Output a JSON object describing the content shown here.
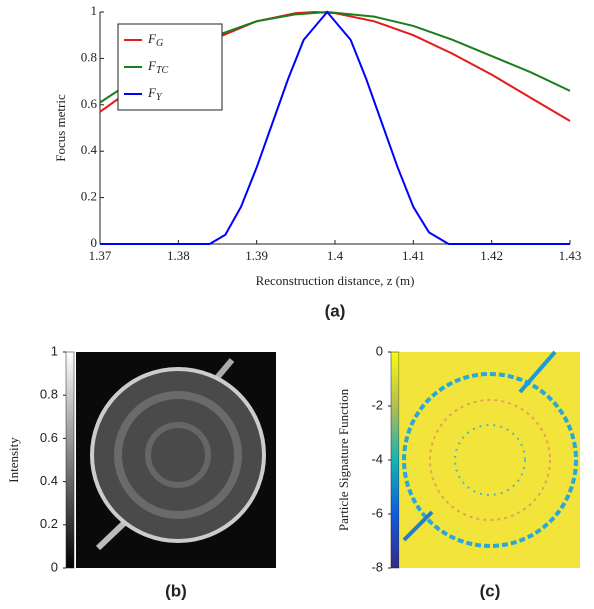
{
  "chart_data": [
    {
      "type": "line",
      "xlabel": "Reconstruction distance, z (m)",
      "ylabel": "Focus metric",
      "caption": "(a)",
      "xlim": [
        1.37,
        1.43
      ],
      "xticks": [
        1.37,
        1.38,
        1.39,
        1.4,
        1.41,
        1.42,
        1.43
      ],
      "ylim": [
        0,
        1
      ],
      "yticks": [
        0,
        0.2,
        0.4,
        0.6,
        0.8,
        1
      ],
      "grid": false,
      "legend": "upper left",
      "series": [
        {
          "name": "F_G",
          "color": "#e41a1c",
          "x": [
            1.37,
            1.375,
            1.38,
            1.385,
            1.39,
            1.395,
            1.3975,
            1.4,
            1.405,
            1.41,
            1.415,
            1.42,
            1.425,
            1.43
          ],
          "values": [
            0.57,
            0.69,
            0.8,
            0.89,
            0.96,
            0.995,
            1,
            0.995,
            0.96,
            0.9,
            0.82,
            0.73,
            0.63,
            0.53
          ]
        },
        {
          "name": "F_TC",
          "color": "#1a7f1a",
          "x": [
            1.37,
            1.375,
            1.38,
            1.385,
            1.39,
            1.395,
            1.399,
            1.405,
            1.41,
            1.415,
            1.42,
            1.425,
            1.43
          ],
          "values": [
            0.61,
            0.72,
            0.82,
            0.9,
            0.96,
            0.99,
            1,
            0.98,
            0.94,
            0.88,
            0.81,
            0.74,
            0.66
          ]
        },
        {
          "name": "F_Y",
          "color": "#0000ff",
          "x": [
            1.37,
            1.384,
            1.386,
            1.388,
            1.39,
            1.392,
            1.394,
            1.396,
            1.399,
            1.402,
            1.404,
            1.406,
            1.408,
            1.41,
            1.412,
            1.4145,
            1.43
          ],
          "values": [
            0,
            0,
            0.04,
            0.16,
            0.33,
            0.52,
            0.71,
            0.88,
            1,
            0.88,
            0.71,
            0.52,
            0.33,
            0.16,
            0.05,
            0,
            0
          ]
        }
      ]
    },
    {
      "type": "image",
      "caption": "(b)",
      "colorbar_label": "Intensity",
      "colormap": "gray",
      "clim": [
        0,
        1
      ],
      "cticks": [
        0,
        0.2,
        0.4,
        0.6,
        0.8,
        1
      ]
    },
    {
      "type": "image",
      "caption": "(c)",
      "colorbar_label": "Particle Signature Function",
      "colormap": "parula",
      "clim": [
        -8,
        0
      ],
      "cticks": [
        0,
        -2,
        -4,
        -6,
        -8
      ]
    }
  ]
}
